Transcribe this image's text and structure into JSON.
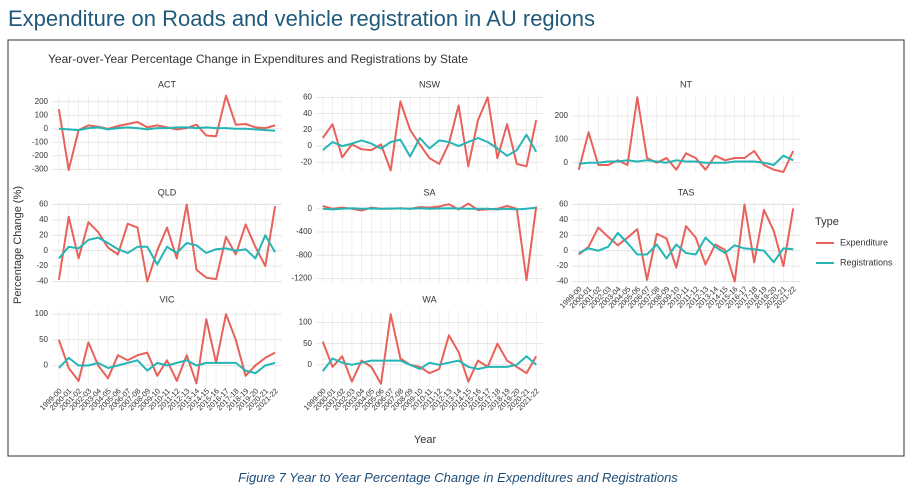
{
  "header": {
    "title": "Expenditure on Roads and vehicle registration in AU regions"
  },
  "figure": {
    "title": "Year-over-Year Percentage Change in Expenditures and Registrations by State",
    "xlabel": "Year",
    "ylabel": "Percentage Change (%)",
    "legend_title": "Type"
  },
  "caption": "Figure 7 Year to Year Percentage Change in Expenditures and Registrations",
  "chart_data": [
    {
      "type": "line",
      "title": "ACT",
      "grid": true,
      "categories": [
        "1999-00",
        "2000-01",
        "2001-02",
        "2002-03",
        "2003-04",
        "2004-05",
        "2005-06",
        "2006-07",
        "2007-08",
        "2008-09",
        "2009-10",
        "2010-11",
        "2011-12",
        "2012-13",
        "2013-14",
        "2014-15",
        "2015-16",
        "2016-17",
        "2017-18",
        "2018-19",
        "2019-20",
        "2020-21",
        "2021-22"
      ],
      "ylim": [
        -320,
        250
      ],
      "yticks": [
        200,
        100,
        0,
        -100,
        -200,
        -300
      ],
      "series": [
        {
          "name": "Expenditure",
          "color": "#e8615a",
          "values": [
            145,
            -305,
            -10,
            25,
            15,
            0,
            20,
            35,
            50,
            10,
            25,
            10,
            -5,
            5,
            30,
            -50,
            -55,
            245,
            30,
            35,
            10,
            5,
            25
          ]
        },
        {
          "name": "Registrations",
          "color": "#26b5b5",
          "values": [
            0,
            -5,
            -10,
            5,
            10,
            -5,
            5,
            10,
            5,
            -5,
            5,
            5,
            10,
            10,
            5,
            10,
            5,
            5,
            0,
            0,
            -5,
            -10,
            -15
          ]
        }
      ]
    },
    {
      "type": "line",
      "title": "NSW",
      "grid": true,
      "categories": [
        "1999-00",
        "2000-01",
        "2001-02",
        "2002-03",
        "2003-04",
        "2004-05",
        "2005-06",
        "2006-07",
        "2007-08",
        "2008-09",
        "2009-10",
        "2010-11",
        "2011-12",
        "2012-13",
        "2013-14",
        "2014-15",
        "2015-16",
        "2016-17",
        "2017-18",
        "2018-19",
        "2019-20",
        "2020-21",
        "2021-22"
      ],
      "ylim": [
        -32,
        63
      ],
      "yticks": [
        60,
        40,
        20,
        0,
        -20
      ],
      "series": [
        {
          "name": "Expenditure",
          "color": "#e8615a",
          "values": [
            10,
            27,
            -14,
            2,
            -4,
            -5,
            2,
            -30,
            55,
            20,
            2,
            -15,
            -22,
            3,
            50,
            -25,
            32,
            60,
            -15,
            27,
            -22,
            -25,
            32
          ]
        },
        {
          "name": "Registrations",
          "color": "#26b5b5",
          "values": [
            -5,
            5,
            0,
            3,
            7,
            3,
            -3,
            5,
            8,
            -13,
            10,
            -3,
            7,
            5,
            0,
            5,
            10,
            5,
            -3,
            -12,
            -5,
            14,
            -7
          ]
        }
      ]
    },
    {
      "type": "line",
      "title": "NT",
      "grid": true,
      "categories": [
        "1999-00",
        "2000-01",
        "2001-02",
        "2002-03",
        "2003-04",
        "2004-05",
        "2005-06",
        "2006-07",
        "2007-08",
        "2008-09",
        "2009-10",
        "2010-11",
        "2011-12",
        "2012-13",
        "2013-14",
        "2014-15",
        "2015-16",
        "2016-17",
        "2017-18",
        "2018-19",
        "2019-20",
        "2020-21",
        "2021-22"
      ],
      "ylim": [
        -40,
        290
      ],
      "yticks": [
        200,
        100,
        0
      ],
      "series": [
        {
          "name": "Expenditure",
          "color": "#e8615a",
          "values": [
            -30,
            130,
            -10,
            -10,
            10,
            -10,
            280,
            20,
            0,
            20,
            -30,
            40,
            20,
            -30,
            30,
            10,
            20,
            20,
            50,
            -10,
            -30,
            -40,
            50
          ]
        },
        {
          "name": "Registrations",
          "color": "#26b5b5",
          "values": [
            -5,
            0,
            0,
            5,
            5,
            10,
            5,
            10,
            5,
            0,
            10,
            5,
            5,
            0,
            0,
            0,
            5,
            5,
            5,
            0,
            -10,
            30,
            10
          ]
        }
      ]
    },
    {
      "type": "line",
      "title": "QLD",
      "grid": true,
      "categories": [
        "1999-00",
        "2000-01",
        "2001-02",
        "2002-03",
        "2003-04",
        "2004-05",
        "2005-06",
        "2006-07",
        "2007-08",
        "2008-09",
        "2009-10",
        "2010-11",
        "2011-12",
        "2012-13",
        "2013-14",
        "2014-15",
        "2015-16",
        "2016-17",
        "2017-18",
        "2018-19",
        "2019-20",
        "2020-21",
        "2021-22"
      ],
      "ylim": [
        -42,
        62
      ],
      "yticks": [
        60,
        40,
        20,
        0,
        -20,
        -40
      ],
      "series": [
        {
          "name": "Expenditure",
          "color": "#e8615a",
          "values": [
            -38,
            44,
            -10,
            37,
            24,
            4,
            -5,
            35,
            30,
            -40,
            0,
            30,
            -10,
            60,
            -25,
            -35,
            -37,
            18,
            -5,
            34,
            5,
            -20,
            58
          ]
        },
        {
          "name": "Registrations",
          "color": "#26b5b5",
          "values": [
            -10,
            5,
            3,
            14,
            17,
            10,
            2,
            -3,
            5,
            5,
            -18,
            5,
            -3,
            10,
            7,
            -3,
            2,
            3,
            0,
            2,
            -10,
            20,
            -2
          ]
        }
      ]
    },
    {
      "type": "line",
      "title": "SA",
      "grid": true,
      "categories": [
        "1999-00",
        "2000-01",
        "2001-02",
        "2002-03",
        "2003-04",
        "2004-05",
        "2005-06",
        "2006-07",
        "2007-08",
        "2008-09",
        "2009-10",
        "2010-11",
        "2011-12",
        "2012-13",
        "2013-14",
        "2014-15",
        "2015-16",
        "2016-17",
        "2017-18",
        "2018-19",
        "2019-20",
        "2020-21",
        "2021-22"
      ],
      "ylim": [
        -1280,
        100
      ],
      "yticks": [
        0,
        -400,
        -800,
        -1200
      ],
      "series": [
        {
          "name": "Expenditure",
          "color": "#e8615a",
          "values": [
            50,
            0,
            20,
            0,
            -30,
            20,
            0,
            0,
            10,
            0,
            30,
            20,
            40,
            80,
            -10,
            90,
            -20,
            -10,
            0,
            50,
            0,
            -1230,
            40
          ]
        },
        {
          "name": "Registrations",
          "color": "#26b5b5",
          "values": [
            0,
            -10,
            0,
            10,
            0,
            5,
            0,
            5,
            5,
            0,
            10,
            0,
            5,
            10,
            5,
            0,
            0,
            0,
            -10,
            0,
            -10,
            0,
            20
          ]
        }
      ]
    },
    {
      "type": "line",
      "title": "TAS",
      "grid": true,
      "categories": [
        "1999-00",
        "2000-01",
        "2001-02",
        "2002-03",
        "2003-04",
        "2004-05",
        "2005-06",
        "2006-07",
        "2007-08",
        "2008-09",
        "2009-10",
        "2010-11",
        "2011-12",
        "2012-13",
        "2013-14",
        "2014-15",
        "2015-16",
        "2016-17",
        "2017-18",
        "2018-19",
        "2019-20",
        "2020-21",
        "2021-22"
      ],
      "ylim": [
        -42,
        62
      ],
      "yticks": [
        60,
        40,
        20,
        0,
        -20,
        -40
      ],
      "series": [
        {
          "name": "Expenditure",
          "color": "#e8615a",
          "values": [
            -5,
            5,
            30,
            18,
            7,
            17,
            28,
            -38,
            22,
            16,
            -22,
            32,
            17,
            -18,
            8,
            1,
            -40,
            60,
            -15,
            53,
            26,
            -20,
            55
          ]
        },
        {
          "name": "Registrations",
          "color": "#26b5b5",
          "values": [
            -3,
            3,
            0,
            5,
            23,
            10,
            -5,
            -5,
            8,
            -10,
            8,
            -3,
            -5,
            17,
            5,
            -3,
            7,
            3,
            2,
            0,
            -15,
            3,
            2
          ]
        }
      ]
    },
    {
      "type": "line",
      "title": "VIC",
      "grid": true,
      "categories": [
        "1999-00",
        "2000-01",
        "2001-02",
        "2002-03",
        "2003-04",
        "2004-05",
        "2005-06",
        "2006-07",
        "2007-08",
        "2008-09",
        "2009-10",
        "2010-11",
        "2011-12",
        "2012-13",
        "2013-14",
        "2014-15",
        "2015-16",
        "2016-17",
        "2017-18",
        "2018-19",
        "2019-20",
        "2020-21",
        "2021-22"
      ],
      "ylim": [
        -38,
        108
      ],
      "yticks": [
        100,
        50,
        0
      ],
      "series": [
        {
          "name": "Expenditure",
          "color": "#e8615a",
          "values": [
            50,
            -5,
            -30,
            45,
            0,
            -25,
            20,
            10,
            20,
            25,
            -20,
            10,
            -30,
            20,
            -35,
            90,
            5,
            100,
            50,
            -20,
            0,
            15,
            25
          ]
        },
        {
          "name": "Registrations",
          "color": "#26b5b5",
          "values": [
            -5,
            15,
            0,
            0,
            5,
            -5,
            0,
            5,
            10,
            -10,
            5,
            0,
            5,
            10,
            0,
            5,
            5,
            5,
            5,
            -10,
            -15,
            0,
            5
          ]
        }
      ]
    },
    {
      "type": "line",
      "title": "WA",
      "grid": true,
      "categories": [
        "1999-00",
        "2000-01",
        "2001-02",
        "2002-03",
        "2003-04",
        "2004-05",
        "2005-06",
        "2006-07",
        "2007-08",
        "2008-09",
        "2009-10",
        "2010-11",
        "2011-12",
        "2012-13",
        "2013-14",
        "2014-15",
        "2015-16",
        "2016-17",
        "2017-18",
        "2018-19",
        "2019-20",
        "2020-21",
        "2021-22"
      ],
      "ylim": [
        -48,
        130
      ],
      "yticks": [
        100,
        50,
        0
      ],
      "series": [
        {
          "name": "Expenditure",
          "color": "#e8615a",
          "values": [
            55,
            -5,
            20,
            -40,
            10,
            -5,
            -45,
            120,
            15,
            0,
            -5,
            -20,
            -10,
            70,
            30,
            -40,
            10,
            -5,
            50,
            10,
            -5,
            -20,
            20
          ]
        },
        {
          "name": "Registrations",
          "color": "#26b5b5",
          "values": [
            -15,
            15,
            5,
            0,
            5,
            10,
            10,
            10,
            10,
            0,
            -10,
            5,
            0,
            5,
            10,
            -5,
            -10,
            -5,
            -5,
            -5,
            0,
            20,
            0
          ]
        }
      ]
    }
  ]
}
